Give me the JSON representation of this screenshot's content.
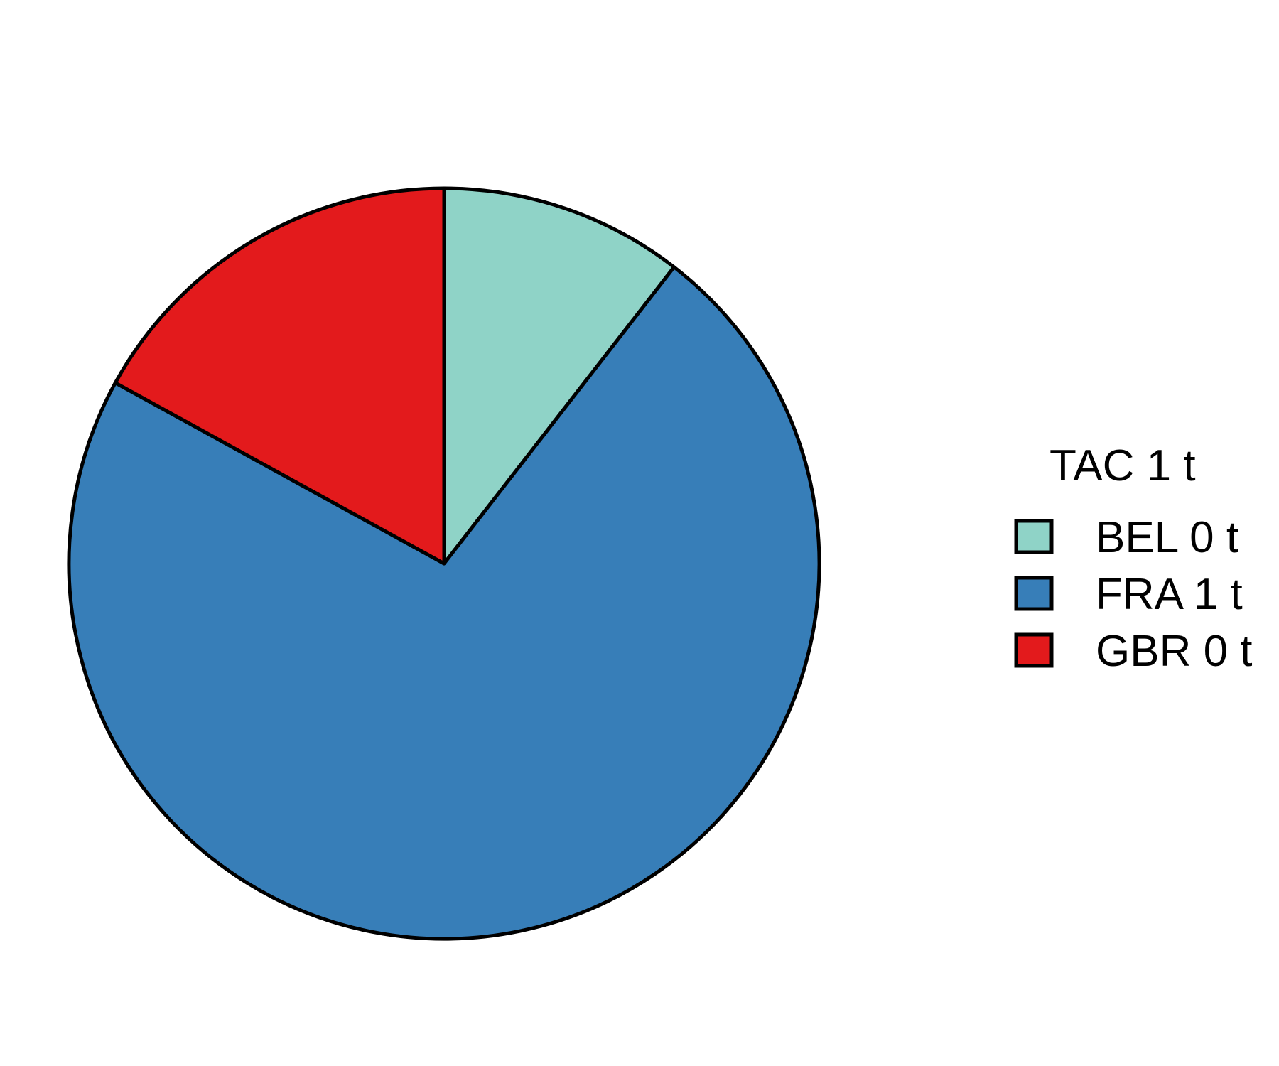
{
  "chart_data": {
    "type": "pie",
    "legend_title": "TAC 1 t",
    "legend_position": "right",
    "start_angle": "12 o'clock",
    "direction": "clockwise",
    "slices": [
      {
        "label": "BEL 0 t",
        "category": "BEL",
        "value": 0.105,
        "color": "#8fd3c7"
      },
      {
        "label": "FRA 1 t",
        "category": "FRA",
        "value": 0.725,
        "color": "#377eb8"
      },
      {
        "label": "GBR 0 t",
        "category": "GBR",
        "value": 0.17,
        "color": "#e31a1c"
      }
    ],
    "stroke_color": "#000000"
  }
}
